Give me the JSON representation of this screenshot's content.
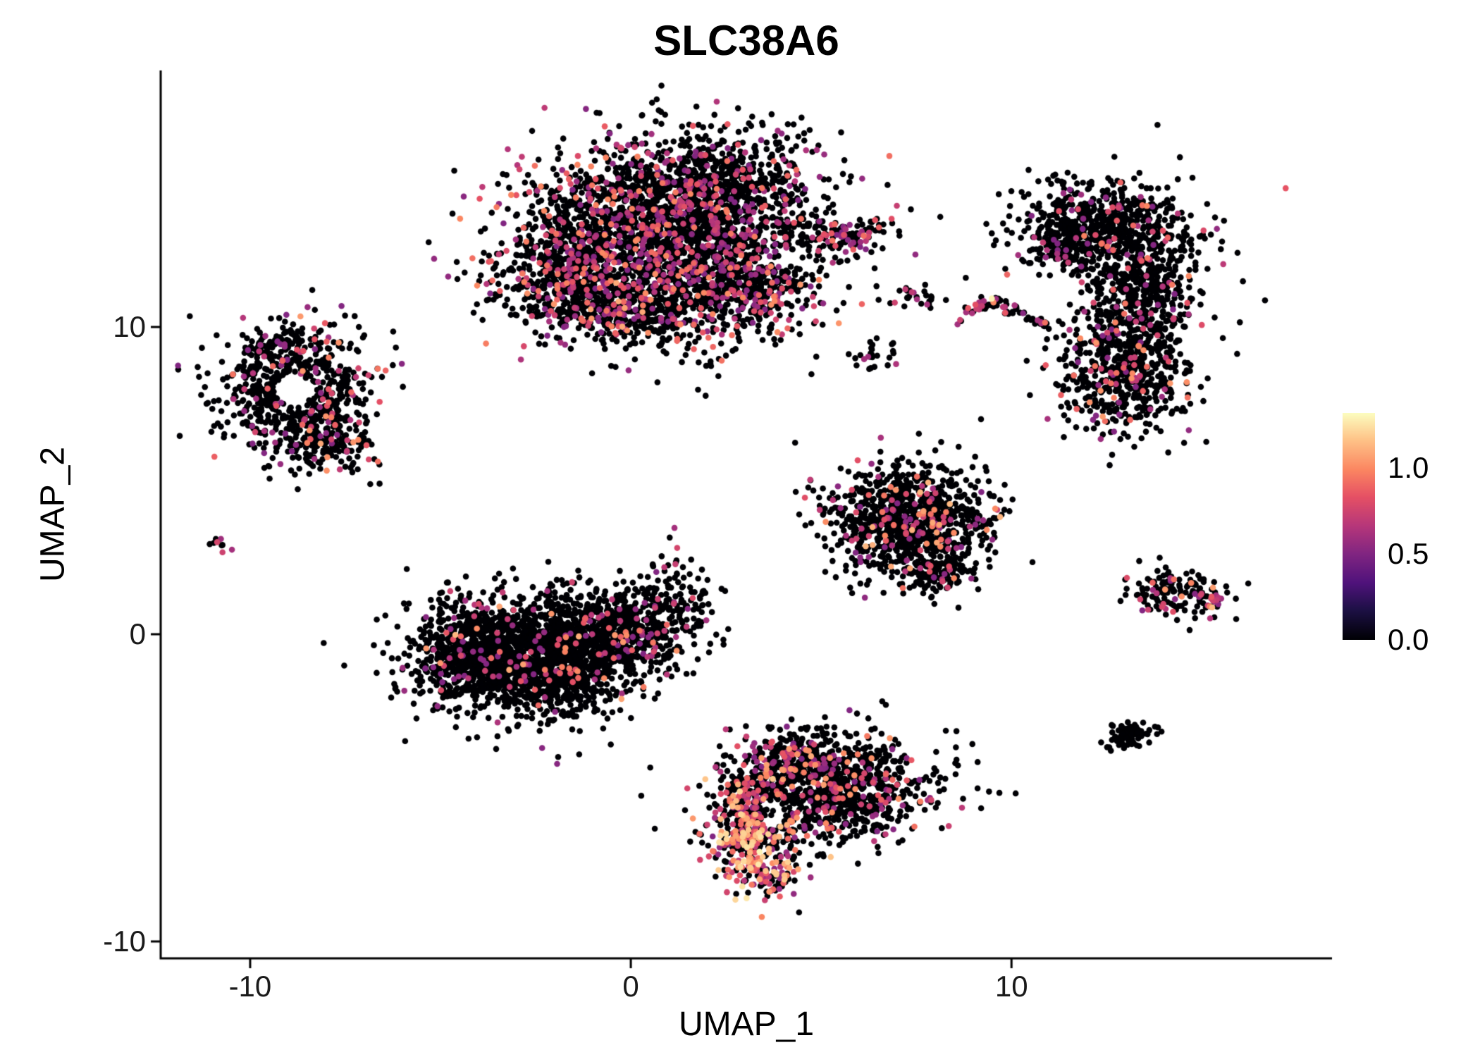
{
  "chart_data": {
    "type": "scatter",
    "title": "SLC38A6",
    "xlabel": "UMAP_1",
    "ylabel": "UMAP_2",
    "xlim": [
      -12.35,
      18.42
    ],
    "ylim": [
      -10.55,
      18.35
    ],
    "xticks": [
      {
        "value": -10,
        "label": "-10"
      },
      {
        "value": 0,
        "label": "0"
      },
      {
        "value": 10,
        "label": "10"
      }
    ],
    "yticks": [
      {
        "value": -10,
        "label": "-10"
      },
      {
        "value": 0,
        "label": "0"
      },
      {
        "value": 10,
        "label": "10"
      }
    ],
    "grid": false,
    "legend_position": "right",
    "background": "#ffffff",
    "axis_color": "#000000",
    "point_radius_px": 4.3,
    "seed": 12345,
    "colorbar": {
      "ticks": [
        {
          "value": 1.0,
          "label": "1.0"
        },
        {
          "value": 0.5,
          "label": "0.5"
        },
        {
          "value": 0.0,
          "label": "0.0"
        }
      ],
      "vmin": 0.0,
      "vmax": 1.32,
      "colormap": "magma",
      "stops": [
        [
          0.0,
          "#000004"
        ],
        [
          0.13,
          "#1c1044"
        ],
        [
          0.25,
          "#4f127b"
        ],
        [
          0.38,
          "#812581"
        ],
        [
          0.5,
          "#b5367a"
        ],
        [
          0.63,
          "#e55064"
        ],
        [
          0.75,
          "#fb8661"
        ],
        [
          0.88,
          "#fec287"
        ],
        [
          1.0,
          "#fcfdbf"
        ]
      ]
    },
    "clusters": [
      {
        "name": "top-main-core",
        "n": 2400,
        "cx": 0.9,
        "cy": 13.0,
        "sx": 1.9,
        "sy": 1.5,
        "frac": 0.2,
        "vmin": 0.5,
        "vmax": 1.0
      },
      {
        "name": "top-main-left",
        "n": 450,
        "cx": -1.6,
        "cy": 11.6,
        "sx": 0.95,
        "sy": 0.9,
        "frac": 0.18,
        "vmin": 0.5,
        "vmax": 1.0
      },
      {
        "name": "top-main-top",
        "n": 380,
        "cx": 2.6,
        "cy": 14.8,
        "sx": 1.25,
        "sy": 0.8,
        "frac": 0.12,
        "vmin": 0.5,
        "vmax": 0.95
      },
      {
        "name": "top-main-lower-right",
        "n": 320,
        "cx": 3.2,
        "cy": 11.3,
        "sx": 0.85,
        "sy": 0.7,
        "frac": 0.28,
        "vmin": 0.5,
        "vmax": 1.05
      },
      {
        "name": "top-main-bottom",
        "n": 350,
        "cx": 0.3,
        "cy": 10.6,
        "sx": 1.35,
        "sy": 0.6,
        "frac": 0.22,
        "vmin": 0.5,
        "vmax": 1.1
      },
      {
        "name": "top-arm",
        "n": 130,
        "cx": 5.5,
        "cy": 13.0,
        "sx": 0.85,
        "sy": 0.28,
        "frac": 0.3,
        "vmin": 0.5,
        "vmax": 1.0
      },
      {
        "name": "left-ring",
        "n": 650,
        "cx": -8.8,
        "cy": 7.9,
        "sx": 1.0,
        "sy": 1.05,
        "frac": 0.13,
        "vmin": 0.5,
        "vmax": 1.05,
        "hole": [
          -8.85,
          7.95,
          0.5
        ]
      },
      {
        "name": "left-lobe-bottom",
        "n": 130,
        "cx": -7.9,
        "cy": 6.2,
        "sx": 0.55,
        "sy": 0.45,
        "frac": 0.18,
        "vmin": 0.5,
        "vmax": 1.1
      },
      {
        "name": "left-lobe-top",
        "n": 60,
        "cx": -9.2,
        "cy": 9.5,
        "sx": 0.5,
        "sy": 0.3,
        "frac": 0.08,
        "vmin": 0.5,
        "vmax": 0.9
      },
      {
        "name": "left-tiny-dot",
        "n": 10,
        "cx": -10.8,
        "cy": 3.0,
        "sx": 0.13,
        "sy": 0.11,
        "frac": 0.5,
        "vmin": 0.55,
        "vmax": 0.8
      },
      {
        "name": "bottom-left-main",
        "n": 2000,
        "cx": -2.7,
        "cy": -0.7,
        "sx": 1.4,
        "sy": 0.95,
        "frac": 0.05,
        "vmin": 0.5,
        "vmax": 1.1
      },
      {
        "name": "bottom-left-right",
        "n": 500,
        "cx": -0.2,
        "cy": 0.2,
        "sx": 0.9,
        "sy": 0.75,
        "frac": 0.09,
        "vmin": 0.5,
        "vmax": 1.05
      },
      {
        "name": "bottom-left-spur",
        "n": 90,
        "cx": 1.2,
        "cy": 1.3,
        "sx": 0.45,
        "sy": 0.6,
        "frac": 0.12,
        "vmin": 0.5,
        "vmax": 0.9
      },
      {
        "name": "bottom-left-edge",
        "n": 150,
        "cx": -4.6,
        "cy": -0.3,
        "sx": 0.5,
        "sy": 0.8,
        "frac": 0.14,
        "vmin": 0.5,
        "vmax": 1.15
      },
      {
        "name": "mid-right-triangle",
        "n": 1000,
        "cx": 7.3,
        "cy": 3.7,
        "sx": 1.05,
        "sy": 0.85,
        "frac": 0.13,
        "vmin": 0.5,
        "vmax": 1.15
      },
      {
        "name": "mid-right-apex",
        "n": 120,
        "cx": 7.9,
        "cy": 2.0,
        "sx": 0.5,
        "sy": 0.35,
        "frac": 0.1,
        "vmin": 0.5,
        "vmax": 0.9
      },
      {
        "name": "bottom-center-main",
        "n": 950,
        "cx": 5.4,
        "cy": -5.0,
        "sx": 1.3,
        "sy": 0.85,
        "frac": 0.14,
        "vmin": 0.5,
        "vmax": 1.05
      },
      {
        "name": "bottom-center-left-hot",
        "n": 380,
        "cx": 3.4,
        "cy": -6.2,
        "sx": 0.65,
        "sy": 0.95,
        "frac": 0.5,
        "vmin": 0.55,
        "vmax": 1.25,
        "hole": [
          3.85,
          -5.85,
          0.42
        ]
      },
      {
        "name": "bottom-center-edge-hot",
        "n": 120,
        "cx": 2.95,
        "cy": -6.6,
        "sx": 0.3,
        "sy": 0.8,
        "frac": 0.65,
        "vmin": 0.7,
        "vmax": 1.3
      },
      {
        "name": "bottom-center-top",
        "n": 180,
        "cx": 4.1,
        "cy": -4.0,
        "sx": 0.7,
        "sy": 0.4,
        "frac": 0.35,
        "vmin": 0.5,
        "vmax": 1.1
      },
      {
        "name": "bottom-center-tip",
        "n": 60,
        "cx": 3.6,
        "cy": -7.9,
        "sx": 0.4,
        "sy": 0.25,
        "frac": 0.5,
        "vmin": 0.55,
        "vmax": 1.2
      },
      {
        "name": "crescent-top",
        "n": 480,
        "cx": 12.2,
        "cy": 13.4,
        "sx": 1.1,
        "sy": 0.7,
        "frac": 0.08,
        "vmin": 0.5,
        "vmax": 1.0
      },
      {
        "name": "crescent-right",
        "n": 650,
        "cx": 13.4,
        "cy": 11.3,
        "sx": 0.75,
        "sy": 1.3,
        "frac": 0.09,
        "vmin": 0.5,
        "vmax": 1.0
      },
      {
        "name": "crescent-bottom",
        "n": 520,
        "cx": 12.9,
        "cy": 8.5,
        "sx": 0.85,
        "sy": 0.95,
        "frac": 0.16,
        "vmin": 0.5,
        "vmax": 1.05
      },
      {
        "name": "crescent-left-tip",
        "n": 100,
        "cx": 11.4,
        "cy": 12.6,
        "sx": 0.45,
        "sy": 0.5,
        "frac": 0.1,
        "vmin": 0.5,
        "vmax": 0.9
      },
      {
        "name": "mini-pair-a",
        "n": 14,
        "cx": 7.25,
        "cy": 11.05,
        "sx": 0.18,
        "sy": 0.15,
        "frac": 0.25,
        "vmin": 0.55,
        "vmax": 0.85
      },
      {
        "name": "mini-pair-b",
        "n": 12,
        "cx": 7.85,
        "cy": 10.9,
        "sx": 0.15,
        "sy": 0.13,
        "frac": 0.1,
        "vmin": 0.55,
        "vmax": 0.8
      },
      {
        "name": "mini-left-of-streak",
        "n": 26,
        "cx": 6.35,
        "cy": 9.1,
        "sx": 0.33,
        "sy": 0.22,
        "frac": 0.18,
        "vmin": 0.55,
        "vmax": 0.95
      },
      {
        "name": "streak-left",
        "type": "line",
        "n": 30,
        "x0": 8.5,
        "y0": 10.25,
        "x1": 9.45,
        "y1": 10.85,
        "w": 0.1,
        "frac": 0.55,
        "vmin": 0.6,
        "vmax": 1.32
      },
      {
        "name": "streak-right",
        "type": "line",
        "n": 48,
        "x0": 9.45,
        "y0": 10.85,
        "x1": 11.0,
        "y1": 10.0,
        "w": 0.09,
        "frac": 0.22,
        "vmin": 0.5,
        "vmax": 0.95
      },
      {
        "name": "right-arrow",
        "n": 140,
        "cx": 14.35,
        "cy": 1.4,
        "sx": 0.65,
        "sy": 0.38,
        "frac": 0.18,
        "vmin": 0.5,
        "vmax": 1.05
      },
      {
        "name": "right-arrow-tip",
        "n": 25,
        "cx": 15.2,
        "cy": 1.1,
        "sx": 0.2,
        "sy": 0.2,
        "frac": 0.5,
        "vmin": 0.55,
        "vmax": 1.15
      },
      {
        "name": "bottom-right-blob",
        "n": 70,
        "cx": 13.1,
        "cy": -3.3,
        "sx": 0.3,
        "sy": 0.27,
        "frac": 0.02,
        "vmin": 0.5,
        "vmax": 0.8
      }
    ],
    "singles": [
      [
        0.3,
        16.9
      ],
      [
        1.9,
        16.5
      ],
      [
        -0.4,
        8.7
      ],
      [
        0.7,
        8.2
      ],
      [
        2.3,
        8.4
      ],
      [
        1.2,
        2.4
      ],
      [
        6.7,
        -2.3
      ],
      [
        5.1,
        -2.7
      ],
      [
        9.2,
        7.0
      ],
      [
        -6.6,
        4.9
      ],
      [
        8.8,
        11.6
      ],
      [
        4.4,
        16.2
      ],
      [
        12.4,
        6.5
      ],
      [
        2.6,
        -3.1
      ],
      [
        10.4,
        8.9
      ]
    ]
  }
}
